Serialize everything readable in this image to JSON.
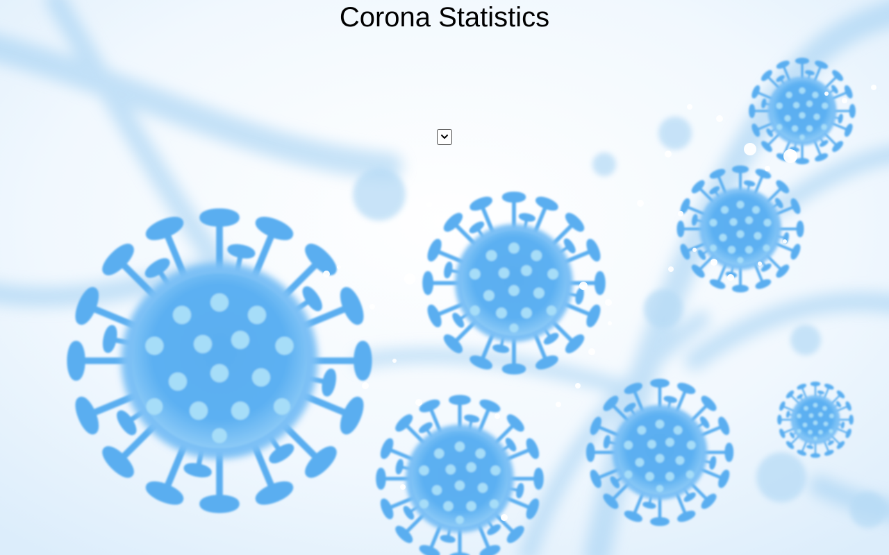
{
  "page": {
    "title": "Corona Statistics"
  },
  "country_select": {
    "selected_value": "",
    "icon": "chevron-down-icon"
  },
  "background": {
    "theme": "virus-illustration",
    "virus_color": "#5fb0f0",
    "virus_dot_color": "#9fdcf6",
    "backdrop_color": "#eaf5fd"
  }
}
